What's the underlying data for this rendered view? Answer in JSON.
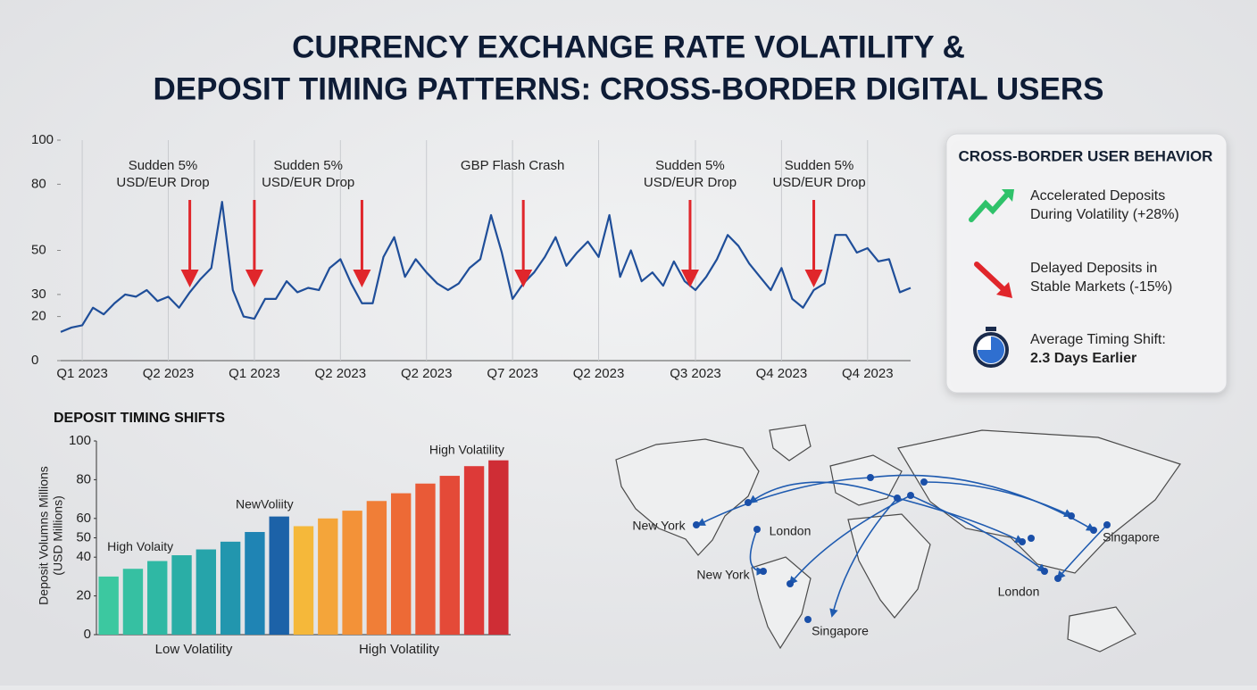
{
  "title_lines": [
    "CURRENCY EXCHANGE RATE VOLATILITY &",
    "DEPOSIT TIMING PATTERNS: CROSS-BORDER DIGITAL USERS"
  ],
  "chart_data": [
    {
      "type": "line",
      "color": "#1f4e99",
      "ylim": [
        0,
        100
      ],
      "yticks": [
        0,
        20,
        30,
        50,
        80,
        100
      ],
      "grid": "x",
      "categories": [
        null,
        null,
        "Q1 2023",
        null,
        null,
        null,
        null,
        null,
        null,
        null,
        "Q2 2023",
        null,
        null,
        null,
        null,
        null,
        null,
        null,
        "Q1 2023",
        null,
        null,
        null,
        null,
        null,
        null,
        null,
        "Q2 2023",
        null,
        null,
        null,
        null,
        null,
        null,
        null,
        "Q2 2023",
        null,
        null,
        null,
        null,
        null,
        null,
        null,
        "Q7 2023",
        null,
        null,
        null,
        null,
        null,
        null,
        null,
        "Q2 2023",
        null,
        null,
        null,
        null,
        null,
        null,
        null,
        null,
        "Q3 2023",
        null,
        null,
        null,
        null,
        null,
        null,
        null,
        "Q4 2023",
        null,
        null,
        null,
        null,
        null,
        null,
        null,
        "Q4 2023",
        null,
        null,
        null,
        null
      ],
      "values": [
        13,
        15,
        16,
        24,
        21,
        26,
        30,
        29,
        32,
        27,
        29,
        24,
        31,
        37,
        42,
        72,
        32,
        20,
        19,
        28,
        28,
        36,
        31,
        33,
        32,
        42,
        46,
        35,
        26,
        26,
        47,
        56,
        38,
        46,
        40,
        35,
        32,
        35,
        42,
        46,
        66,
        49,
        28,
        35,
        40,
        47,
        56,
        43,
        49,
        54,
        47,
        66,
        38,
        50,
        36,
        40,
        34,
        45,
        36,
        32,
        38,
        46,
        57,
        52,
        44,
        38,
        32,
        42,
        28,
        24,
        32,
        35,
        57,
        57,
        49,
        51,
        45,
        46,
        31,
        33
      ],
      "annotations": [
        {
          "lines": [
            "Sudden 5%",
            "USD/EUR Drop"
          ],
          "x": 9.5
        },
        {
          "lines": [
            "Sudden 5%",
            "USD/EUR Drop"
          ],
          "x": 23
        },
        {
          "lines": [
            "GBP Flash Crash"
          ],
          "x": 42
        },
        {
          "lines": [
            "Sudden 5%",
            "USD/EUR Drop"
          ],
          "x": 58.5
        },
        {
          "lines": [
            "Sudden 5%",
            "USD/EUR Drop"
          ],
          "x": 70.5
        }
      ],
      "arrows": [
        12,
        18,
        28,
        43,
        58.5,
        70
      ],
      "arrow_color": "#e0262b"
    },
    {
      "type": "bar",
      "title": "DEPOSIT TIMING SHIFTS",
      "ylabel_lines": [
        "Deposit Volumns Millions",
        "(USD Millions)"
      ],
      "ylim": [
        0,
        100
      ],
      "yticks": [
        0,
        20,
        40,
        50,
        60,
        80,
        100
      ],
      "categories": [
        null,
        null,
        null,
        null,
        null,
        null,
        null,
        null,
        null,
        null,
        null,
        null,
        null,
        null,
        null,
        null,
        null
      ],
      "values": [
        30,
        34,
        38,
        41,
        44,
        48,
        53,
        61,
        56,
        60,
        64,
        69,
        73,
        78,
        82,
        87,
        90
      ],
      "colors": [
        "#3cc8a0",
        "#36c0a2",
        "#2fb8a4",
        "#2aaea6",
        "#26a4aa",
        "#2296ae",
        "#1f84b4",
        "#1c62a8",
        "#f5b83a",
        "#f4a53a",
        "#f39238",
        "#f07e37",
        "#ed6a36",
        "#e95a37",
        "#e44a38",
        "#dd3a38",
        "#cf2d35"
      ],
      "x_group_labels": [
        "Low Volatility",
        "High Volatility"
      ],
      "annotations": [
        {
          "text": "High Volaity",
          "x": 1.3,
          "y": 45
        },
        {
          "text": "NewVoliity",
          "x": 6.4,
          "y": 67
        },
        {
          "text": "High Volatility",
          "x": 14.7,
          "y": 95
        }
      ]
    }
  ],
  "sidebar": {
    "title": "CROSS-BORDER USER BEHAVIOR",
    "items": [
      {
        "lines": [
          "Accelerated Deposits",
          "During Volatility (+28%)"
        ]
      },
      {
        "lines": [
          "Delayed Deposits in",
          "Stable Markets (-15%)"
        ]
      },
      {
        "lines": [
          "Average Timing Shift:",
          "2.3 Days Earlier"
        ]
      }
    ]
  },
  "map": {
    "labels": [
      "New York",
      "London",
      "New York",
      "Singapore",
      "London",
      "Singapore"
    ]
  }
}
